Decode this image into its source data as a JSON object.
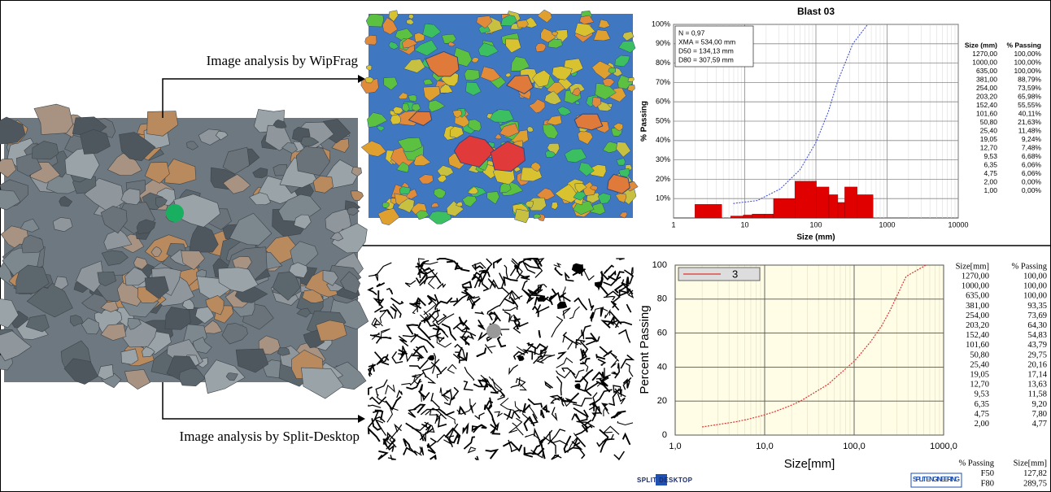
{
  "labels": {
    "wipfrag": "Image analysis by WipFrag",
    "split": "Image analysis by Split-Desktop"
  },
  "chart_data": [
    {
      "type": "histogram",
      "title": "Blast 03",
      "x_label": "Size (mm)",
      "y_label": "% Passing",
      "x_log": true,
      "xlim": [
        1,
        10000
      ],
      "xticks": [
        1,
        10,
        100,
        1000,
        10000
      ],
      "ylim": [
        0,
        100
      ],
      "yticks": [
        {
          "value": 10,
          "label": "10%"
        },
        {
          "value": 20,
          "label": "20%"
        },
        {
          "value": 30,
          "label": "30%"
        },
        {
          "value": 40,
          "label": "40%"
        },
        {
          "value": 50,
          "label": "50%"
        },
        {
          "value": 60,
          "label": "60%"
        },
        {
          "value": 70,
          "label": "70%"
        },
        {
          "value": 80,
          "label": "80%"
        },
        {
          "value": 90,
          "label": "90%"
        },
        {
          "value": 100,
          "label": "100%"
        }
      ],
      "grid": true,
      "annotations": [
        "N = 0,97",
        "XMA = 534,00 mm",
        "D50 = 134,13 mm",
        "D80 = 307,59 mm"
      ],
      "bins": [
        2,
        4.75,
        6.35,
        9.53,
        12.7,
        19.05,
        25.4,
        50.8,
        101.6,
        152.4,
        203.2,
        254,
        381,
        635
      ],
      "counts": [
        7,
        0,
        1,
        1.5,
        2,
        2,
        10,
        19,
        16,
        12,
        8,
        16,
        12
      ],
      "color": "#e00000",
      "curve": {
        "color": "#3344dd",
        "x": [
          6.9,
          15,
          31.6,
          60,
          100,
          150,
          200,
          330,
          534
        ],
        "values": [
          7.5,
          9,
          15,
          25,
          39,
          55,
          70,
          90,
          100
        ]
      },
      "table": {
        "headers": [
          "Size (mm)",
          "% Passing"
        ],
        "rows": [
          [
            "1270,00",
            "100,00%"
          ],
          [
            "1000,00",
            "100,00%"
          ],
          [
            "635,00",
            "100,00%"
          ],
          [
            "381,00",
            "88,79%"
          ],
          [
            "254,00",
            "73,59%"
          ],
          [
            "203,20",
            "65,98%"
          ],
          [
            "152,40",
            "55,55%"
          ],
          [
            "101,60",
            "40,11%"
          ],
          [
            "50,80",
            "21,63%"
          ],
          [
            "25,40",
            "11,48%"
          ],
          [
            "19,05",
            "9,24%"
          ],
          [
            "12,70",
            "7,48%"
          ],
          [
            "9,53",
            "6,68%"
          ],
          [
            "6,35",
            "6,06%"
          ],
          [
            "4,75",
            "6,06%"
          ],
          [
            "2,00",
            "0,00%"
          ],
          [
            "1,00",
            "0,00%"
          ]
        ]
      }
    },
    {
      "type": "line",
      "x_label": "Size[mm]",
      "y_label": "Percent Passing",
      "x_log": true,
      "xlim": [
        1,
        1000
      ],
      "xticks": [
        {
          "value": 1,
          "label": "1,0"
        },
        {
          "value": 10,
          "label": "10,0"
        },
        {
          "value": 100,
          "label": "100,0"
        },
        {
          "value": 1000,
          "label": "1000,0"
        }
      ],
      "ylim": [
        0,
        100
      ],
      "yticks": [
        0,
        20,
        40,
        60,
        80,
        100
      ],
      "grid": true,
      "legend": "top-left",
      "series": [
        {
          "name": "3",
          "color": "#e03030",
          "x": [
            2,
            4.75,
            6.35,
            9.53,
            12.7,
            19.05,
            25.4,
            50.8,
            101.6,
            152.4,
            203.2,
            254,
            381,
            635
          ],
          "values": [
            4.77,
            7.8,
            9.2,
            11.58,
            13.63,
            17.14,
            20.16,
            29.75,
            43.79,
            54.83,
            64.3,
            73.69,
            93.35,
            100
          ]
        }
      ],
      "table": {
        "headers": [
          "Size[mm]",
          "% Passing"
        ],
        "rows": [
          [
            "1270,00",
            "100,00"
          ],
          [
            "1000,00",
            "100,00"
          ],
          [
            "635,00",
            "100,00"
          ],
          [
            "381,00",
            "93,35"
          ],
          [
            "254,00",
            "73,69"
          ],
          [
            "203,20",
            "64,30"
          ],
          [
            "152,40",
            "54,83"
          ],
          [
            "101,60",
            "43,79"
          ],
          [
            "50,80",
            "29,75"
          ],
          [
            "25,40",
            "20,16"
          ],
          [
            "19,05",
            "17,14"
          ],
          [
            "12,70",
            "13,63"
          ],
          [
            "9,53",
            "11,58"
          ],
          [
            "6,35",
            "9,20"
          ],
          [
            "4,75",
            "7,80"
          ],
          [
            "2,00",
            "4,77"
          ]
        ]
      },
      "summary": {
        "headers": [
          "% Passing",
          "Size[mm]"
        ],
        "rows": [
          [
            "F50",
            "127,82"
          ],
          [
            "F80",
            "289,75"
          ]
        ]
      }
    }
  ],
  "logos": [
    "SPLIT DESKTOP",
    "SPLIT ENGINEERING"
  ]
}
